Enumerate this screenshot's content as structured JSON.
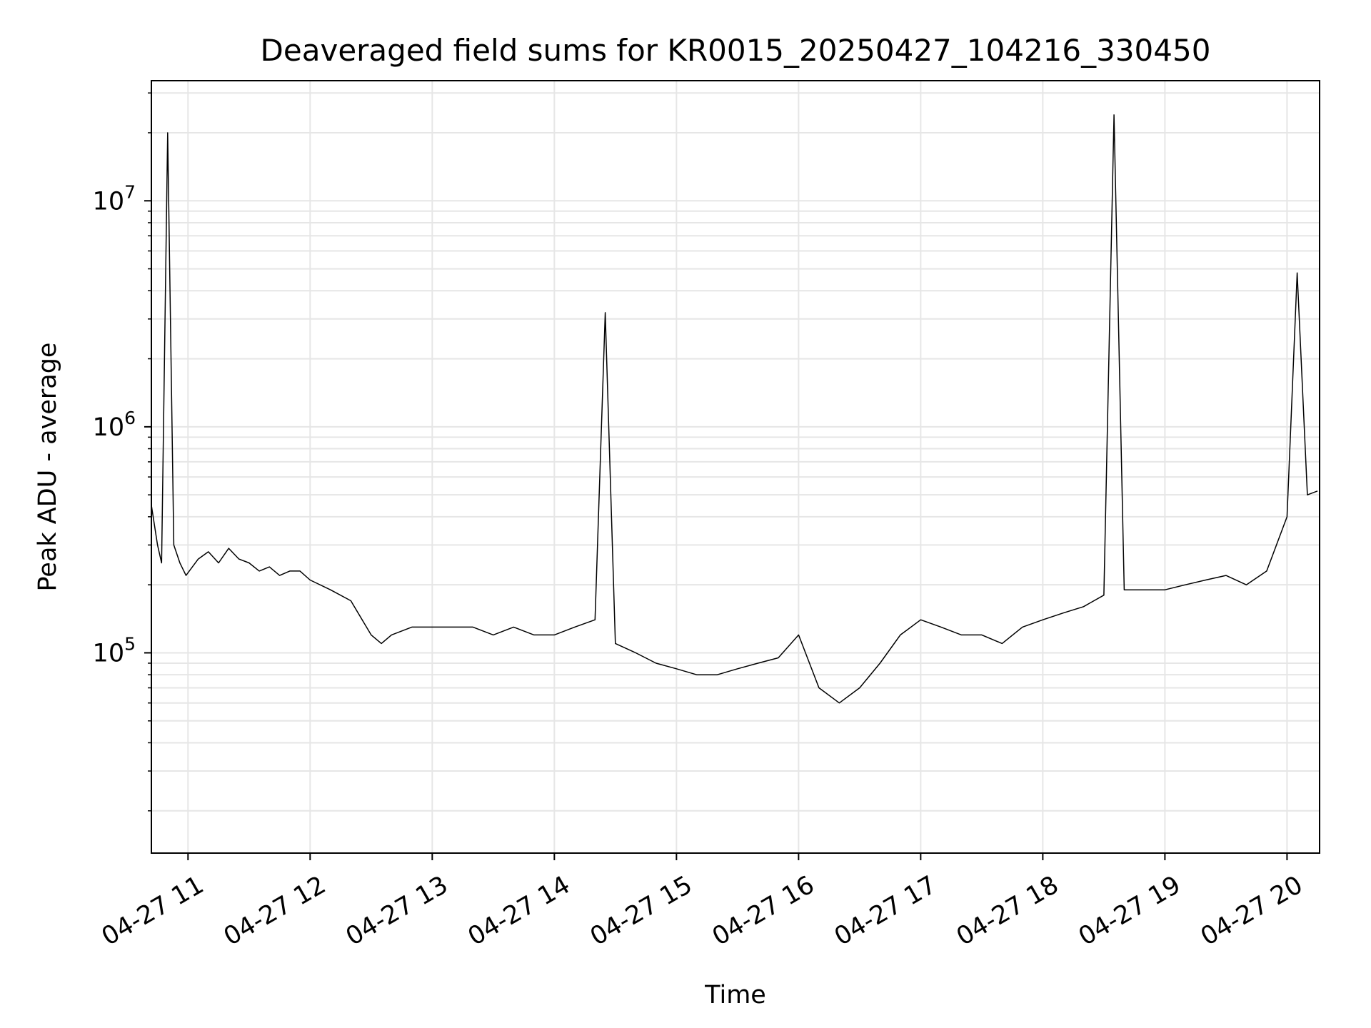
{
  "chart_data": {
    "type": "line",
    "title": "Deaveraged field sums for KR0015_20250427_104216_330450",
    "xlabel": "Time",
    "ylabel": "Peak ADU - average",
    "yscale": "log",
    "xlim": [
      "2025-04-27 10:42",
      "2025-04-27 20:16"
    ],
    "ylim": [
      13000,
      34000000
    ],
    "x_ticks": [
      {
        "t": "2025-04-27 11:00",
        "label": "04-27 11"
      },
      {
        "t": "2025-04-27 12:00",
        "label": "04-27 12"
      },
      {
        "t": "2025-04-27 13:00",
        "label": "04-27 13"
      },
      {
        "t": "2025-04-27 14:00",
        "label": "04-27 14"
      },
      {
        "t": "2025-04-27 15:00",
        "label": "04-27 15"
      },
      {
        "t": "2025-04-27 16:00",
        "label": "04-27 16"
      },
      {
        "t": "2025-04-27 17:00",
        "label": "04-27 17"
      },
      {
        "t": "2025-04-27 18:00",
        "label": "04-27 18"
      },
      {
        "t": "2025-04-27 19:00",
        "label": "04-27 19"
      },
      {
        "t": "2025-04-27 20:00",
        "label": "04-27 20"
      }
    ],
    "y_ticks": [
      {
        "value": 100000,
        "base": "10",
        "exp": "5"
      },
      {
        "value": 1000000,
        "base": "10",
        "exp": "6"
      },
      {
        "value": 10000000,
        "base": "10",
        "exp": "7"
      }
    ],
    "grid": true,
    "series": [
      {
        "color": "#000000",
        "x": [
          "2025-04-27 10:42",
          "2025-04-27 10:45",
          "2025-04-27 10:47",
          "2025-04-27 10:50",
          "2025-04-27 10:53",
          "2025-04-27 10:56",
          "2025-04-27 10:59",
          "2025-04-27 11:05",
          "2025-04-27 11:10",
          "2025-04-27 11:15",
          "2025-04-27 11:20",
          "2025-04-27 11:25",
          "2025-04-27 11:30",
          "2025-04-27 11:35",
          "2025-04-27 11:40",
          "2025-04-27 11:45",
          "2025-04-27 11:50",
          "2025-04-27 11:55",
          "2025-04-27 12:00",
          "2025-04-27 12:10",
          "2025-04-27 12:20",
          "2025-04-27 12:30",
          "2025-04-27 12:35",
          "2025-04-27 12:40",
          "2025-04-27 12:50",
          "2025-04-27 13:00",
          "2025-04-27 13:10",
          "2025-04-27 13:20",
          "2025-04-27 13:30",
          "2025-04-27 13:40",
          "2025-04-27 13:50",
          "2025-04-27 14:00",
          "2025-04-27 14:10",
          "2025-04-27 14:20",
          "2025-04-27 14:25",
          "2025-04-27 14:30",
          "2025-04-27 14:40",
          "2025-04-27 14:50",
          "2025-04-27 15:00",
          "2025-04-27 15:10",
          "2025-04-27 15:20",
          "2025-04-27 15:30",
          "2025-04-27 15:40",
          "2025-04-27 15:50",
          "2025-04-27 16:00",
          "2025-04-27 16:10",
          "2025-04-27 16:20",
          "2025-04-27 16:30",
          "2025-04-27 16:40",
          "2025-04-27 16:50",
          "2025-04-27 17:00",
          "2025-04-27 17:10",
          "2025-04-27 17:20",
          "2025-04-27 17:30",
          "2025-04-27 17:40",
          "2025-04-27 17:50",
          "2025-04-27 18:00",
          "2025-04-27 18:10",
          "2025-04-27 18:20",
          "2025-04-27 18:30",
          "2025-04-27 18:35",
          "2025-04-27 18:40",
          "2025-04-27 18:50",
          "2025-04-27 19:00",
          "2025-04-27 19:10",
          "2025-04-27 19:20",
          "2025-04-27 19:30",
          "2025-04-27 19:40",
          "2025-04-27 19:50",
          "2025-04-27 20:00",
          "2025-04-27 20:05",
          "2025-04-27 20:10",
          "2025-04-27 20:15"
        ],
        "y": [
          450000,
          300000,
          250000,
          20000000,
          300000,
          250000,
          220000,
          260000,
          280000,
          250000,
          290000,
          260000,
          250000,
          230000,
          240000,
          220000,
          230000,
          230000,
          210000,
          190000,
          170000,
          120000,
          110000,
          120000,
          130000,
          130000,
          130000,
          130000,
          120000,
          130000,
          120000,
          120000,
          130000,
          140000,
          3200000,
          110000,
          100000,
          90000,
          85000,
          80000,
          80000,
          85000,
          90000,
          95000,
          120000,
          70000,
          60000,
          70000,
          90000,
          120000,
          140000,
          130000,
          120000,
          120000,
          110000,
          130000,
          140000,
          150000,
          160000,
          180000,
          24000000,
          190000,
          190000,
          190000,
          200000,
          210000,
          220000,
          200000,
          230000,
          400000,
          4800000,
          500000,
          520000
        ]
      }
    ]
  }
}
